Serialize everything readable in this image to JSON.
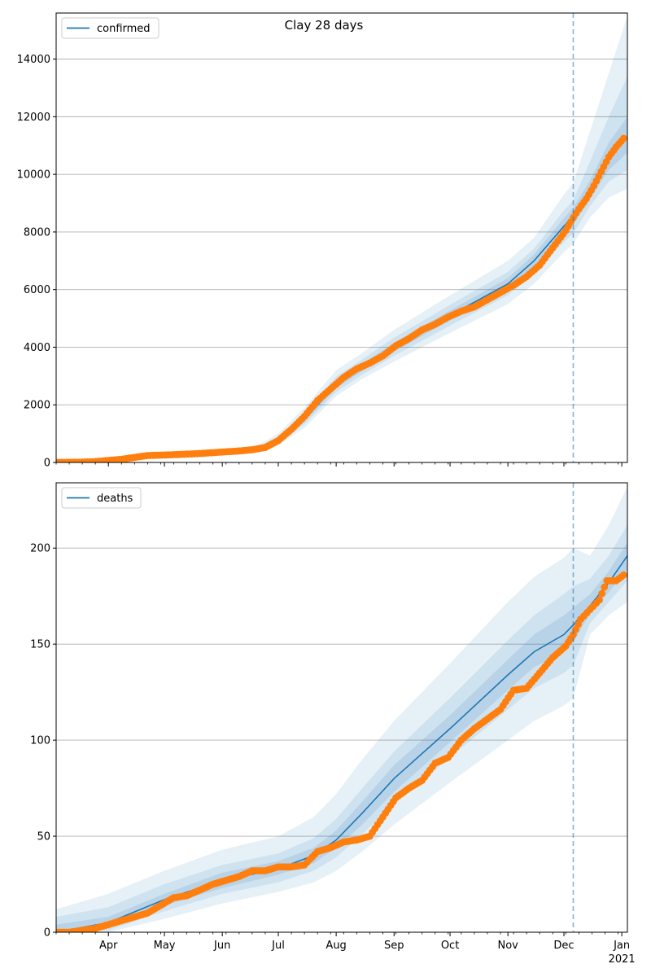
{
  "figure": {
    "title": "Clay 28 days",
    "actual_color": "#ff7f0e",
    "model_color": "#1f77b4",
    "band_color": "#1f77b4",
    "forecast_line_color": "#1f77b4"
  },
  "chart_data": [
    {
      "type": "line",
      "legend": "confirmed",
      "legend_placement": "top-left",
      "grid": "y",
      "x_range": [
        "2020-03-04",
        "2021-01-04"
      ],
      "ylim": [
        0,
        15600
      ],
      "yticks": [
        0,
        2000,
        4000,
        6000,
        8000,
        10000,
        12000,
        14000
      ],
      "ytick_labels": [
        "0",
        "2000",
        "4000",
        "6000",
        "8000",
        "10000",
        "12000",
        "14000"
      ],
      "forecast_start": "2020-12-06",
      "model_line": [
        [
          "2020-03-04",
          0
        ],
        [
          "2020-04-01",
          80
        ],
        [
          "2020-05-01",
          260
        ],
        [
          "2020-06-01",
          360
        ],
        [
          "2020-06-20",
          480
        ],
        [
          "2020-07-01",
          760
        ],
        [
          "2020-07-15",
          1500
        ],
        [
          "2020-08-01",
          2700
        ],
        [
          "2020-08-15",
          3300
        ],
        [
          "2020-09-01",
          4000
        ],
        [
          "2020-10-01",
          5100
        ],
        [
          "2020-11-01",
          6200
        ],
        [
          "2020-11-15",
          7000
        ],
        [
          "2020-12-01",
          8200
        ],
        [
          "2020-12-06",
          8550
        ],
        [
          "2020-12-15",
          9350
        ],
        [
          "2020-12-25",
          10500
        ],
        [
          "2021-01-04",
          11300
        ]
      ],
      "bands": [
        {
          "level": "outer",
          "points": [
            [
              "2020-03-04",
              0,
              80
            ],
            [
              "2020-04-01",
              60,
              110
            ],
            [
              "2020-05-01",
              220,
              320
            ],
            [
              "2020-06-01",
              310,
              430
            ],
            [
              "2020-06-20",
              400,
              600
            ],
            [
              "2020-07-01",
              600,
              1000
            ],
            [
              "2020-07-15",
              1200,
              1900
            ],
            [
              "2020-08-01",
              2300,
              3200
            ],
            [
              "2020-08-15",
              2900,
              3800
            ],
            [
              "2020-09-01",
              3500,
              4600
            ],
            [
              "2020-10-01",
              4500,
              5800
            ],
            [
              "2020-11-01",
              5500,
              7000
            ],
            [
              "2020-11-15",
              6200,
              7800
            ],
            [
              "2020-12-01",
              7300,
              9300
            ],
            [
              "2020-12-06",
              7600,
              9700
            ],
            [
              "2020-12-15",
              8500,
              11500
            ],
            [
              "2020-12-25",
              9200,
              13500
            ],
            [
              "2021-01-04",
              9500,
              15500
            ]
          ]
        },
        {
          "level": "middle",
          "points": [
            [
              "2020-03-04",
              0,
              60
            ],
            [
              "2020-04-01",
              65,
              100
            ],
            [
              "2020-05-01",
              235,
              295
            ],
            [
              "2020-06-01",
              330,
              400
            ],
            [
              "2020-06-20",
              430,
              550
            ],
            [
              "2020-07-01",
              660,
              900
            ],
            [
              "2020-07-15",
              1320,
              1720
            ],
            [
              "2020-08-01",
              2450,
              2980
            ],
            [
              "2020-08-15",
              3050,
              3580
            ],
            [
              "2020-09-01",
              3700,
              4330
            ],
            [
              "2020-10-01",
              4750,
              5470
            ],
            [
              "2020-11-01",
              5800,
              6620
            ],
            [
              "2020-11-15",
              6550,
              7420
            ],
            [
              "2020-12-01",
              7650,
              8750
            ],
            [
              "2020-12-06",
              7950,
              9100
            ],
            [
              "2020-12-15",
              8900,
              10450
            ],
            [
              "2020-12-25",
              9750,
              12000
            ],
            [
              "2021-01-04",
              10150,
              13400
            ]
          ]
        },
        {
          "level": "inner",
          "points": [
            [
              "2020-03-04",
              0,
              40
            ],
            [
              "2020-04-01",
              70,
              90
            ],
            [
              "2020-05-01",
              245,
              275
            ],
            [
              "2020-06-01",
              345,
              375
            ],
            [
              "2020-06-20",
              455,
              510
            ],
            [
              "2020-07-01",
              710,
              820
            ],
            [
              "2020-07-15",
              1410,
              1600
            ],
            [
              "2020-08-01",
              2580,
              2830
            ],
            [
              "2020-08-15",
              3170,
              3430
            ],
            [
              "2020-09-01",
              3850,
              4150
            ],
            [
              "2020-10-01",
              4930,
              5280
            ],
            [
              "2020-11-01",
              6000,
              6400
            ],
            [
              "2020-11-15",
              6780,
              7220
            ],
            [
              "2020-12-01",
              7930,
              8480
            ],
            [
              "2020-12-06",
              8260,
              8840
            ],
            [
              "2020-12-15",
              9150,
              9800
            ],
            [
              "2020-12-25",
              10150,
              11100
            ],
            [
              "2021-01-04",
              10750,
              12000
            ]
          ]
        }
      ],
      "actual": [
        [
          "2020-03-04",
          3
        ],
        [
          "2020-03-11",
          5
        ],
        [
          "2020-03-18",
          12
        ],
        [
          "2020-03-25",
          30
        ],
        [
          "2020-04-01",
          70
        ],
        [
          "2020-04-08",
          110
        ],
        [
          "2020-04-15",
          175
        ],
        [
          "2020-04-22",
          240
        ],
        [
          "2020-04-29",
          255
        ],
        [
          "2020-05-06",
          270
        ],
        [
          "2020-05-13",
          290
        ],
        [
          "2020-05-20",
          310
        ],
        [
          "2020-05-27",
          340
        ],
        [
          "2020-06-03",
          370
        ],
        [
          "2020-06-10",
          400
        ],
        [
          "2020-06-17",
          440
        ],
        [
          "2020-06-24",
          520
        ],
        [
          "2020-07-01",
          760
        ],
        [
          "2020-07-08",
          1150
        ],
        [
          "2020-07-15",
          1600
        ],
        [
          "2020-07-22",
          2150
        ],
        [
          "2020-07-29",
          2550
        ],
        [
          "2020-08-05",
          2950
        ],
        [
          "2020-08-12",
          3250
        ],
        [
          "2020-08-19",
          3450
        ],
        [
          "2020-08-26",
          3700
        ],
        [
          "2020-09-02",
          4050
        ],
        [
          "2020-09-09",
          4300
        ],
        [
          "2020-09-16",
          4600
        ],
        [
          "2020-09-23",
          4800
        ],
        [
          "2020-09-30",
          5050
        ],
        [
          "2020-10-07",
          5250
        ],
        [
          "2020-10-14",
          5400
        ],
        [
          "2020-10-21",
          5650
        ],
        [
          "2020-10-28",
          5900
        ],
        [
          "2020-11-04",
          6150
        ],
        [
          "2020-11-11",
          6450
        ],
        [
          "2020-11-18",
          6850
        ],
        [
          "2020-11-25",
          7450
        ],
        [
          "2020-12-02",
          8050
        ],
        [
          "2020-12-06",
          8500
        ],
        [
          "2020-12-09",
          8800
        ],
        [
          "2020-12-13",
          9150
        ],
        [
          "2020-12-17",
          9600
        ],
        [
          "2020-12-21",
          10100
        ],
        [
          "2020-12-25",
          10600
        ],
        [
          "2020-12-29",
          10950
        ],
        [
          "2021-01-02",
          11250
        ]
      ]
    },
    {
      "type": "line",
      "legend": "deaths",
      "legend_placement": "top-left",
      "grid": "y",
      "x_range": [
        "2020-03-04",
        "2021-01-04"
      ],
      "ylim": [
        0,
        234
      ],
      "yticks": [
        0,
        50,
        100,
        150,
        200
      ],
      "ytick_labels": [
        "0",
        "50",
        "100",
        "150",
        "200"
      ],
      "forecast_start": "2020-12-06",
      "xtick_labels": [
        "Apr",
        "May",
        "Jun",
        "Jul",
        "Aug",
        "Sep",
        "Oct",
        "Nov",
        "Dec",
        "Jan",
        "2021"
      ],
      "model_line": [
        [
          "2020-03-04",
          0
        ],
        [
          "2020-04-01",
          5
        ],
        [
          "2020-05-01",
          17
        ],
        [
          "2020-06-01",
          27
        ],
        [
          "2020-07-01",
          33
        ],
        [
          "2020-07-20",
          40
        ],
        [
          "2020-08-01",
          48
        ],
        [
          "2020-08-15",
          62
        ],
        [
          "2020-09-01",
          80
        ],
        [
          "2020-10-01",
          106
        ],
        [
          "2020-11-01",
          134
        ],
        [
          "2020-11-15",
          146
        ],
        [
          "2020-12-01",
          155
        ],
        [
          "2020-12-06",
          160
        ],
        [
          "2020-12-15",
          170
        ],
        [
          "2020-12-25",
          182
        ],
        [
          "2021-01-04",
          196
        ]
      ],
      "bands": [
        {
          "level": "outer",
          "points": [
            [
              "2020-03-04",
              0,
              12
            ],
            [
              "2020-04-01",
              0,
              20
            ],
            [
              "2020-05-01",
              7,
              32
            ],
            [
              "2020-06-01",
              15,
              43
            ],
            [
              "2020-07-01",
              21,
              50
            ],
            [
              "2020-07-20",
              26,
              60
            ],
            [
              "2020-08-01",
              32,
              72
            ],
            [
              "2020-08-15",
              42,
              90
            ],
            [
              "2020-09-01",
              56,
              110
            ],
            [
              "2020-10-01",
              78,
              140
            ],
            [
              "2020-11-01",
              100,
              172
            ],
            [
              "2020-11-15",
              110,
              185
            ],
            [
              "2020-12-01",
              118,
              195
            ],
            [
              "2020-12-06",
              122,
              200
            ],
            [
              "2020-12-15",
              155,
              196
            ],
            [
              "2020-12-25",
              165,
              212
            ],
            [
              "2021-01-04",
              172,
              232
            ]
          ]
        },
        {
          "level": "middle",
          "points": [
            [
              "2020-03-04",
              0,
              8
            ],
            [
              "2020-04-01",
              1,
              13
            ],
            [
              "2020-05-01",
              11,
              25
            ],
            [
              "2020-06-01",
              20,
              35
            ],
            [
              "2020-07-01",
              26,
              41
            ],
            [
              "2020-07-20",
              32,
              49
            ],
            [
              "2020-08-01",
              39,
              59
            ],
            [
              "2020-08-15",
              51,
              75
            ],
            [
              "2020-09-01",
              67,
              94
            ],
            [
              "2020-10-01",
              91,
              122
            ],
            [
              "2020-11-01",
              116,
              152
            ],
            [
              "2020-11-15",
              127,
              165
            ],
            [
              "2020-12-01",
              135,
              176
            ],
            [
              "2020-12-06",
              139,
              180
            ],
            [
              "2020-12-15",
              161,
              184
            ],
            [
              "2020-12-25",
              172,
              196
            ],
            [
              "2021-01-04",
              183,
              212
            ]
          ]
        },
        {
          "level": "inner",
          "points": [
            [
              "2020-03-04",
              0,
              4
            ],
            [
              "2020-04-01",
              3,
              8
            ],
            [
              "2020-05-01",
              14,
              20
            ],
            [
              "2020-06-01",
              23,
              31
            ],
            [
              "2020-07-01",
              30,
              37
            ],
            [
              "2020-07-20",
              36,
              44
            ],
            [
              "2020-08-01",
              44,
              53
            ],
            [
              "2020-08-15",
              56,
              68
            ],
            [
              "2020-09-01",
              73,
              87
            ],
            [
              "2020-10-01",
              99,
              113
            ],
            [
              "2020-11-01",
              126,
              142
            ],
            [
              "2020-11-15",
              138,
              155
            ],
            [
              "2020-12-01",
              146,
              165
            ],
            [
              "2020-12-06",
              151,
              169
            ],
            [
              "2020-12-15",
              166,
              176
            ],
            [
              "2020-12-25",
              177,
              188
            ],
            [
              "2021-01-04",
              189,
              203
            ]
          ]
        }
      ],
      "actual": [
        [
          "2020-03-04",
          0
        ],
        [
          "2020-03-11",
          0
        ],
        [
          "2020-03-18",
          1
        ],
        [
          "2020-03-25",
          2
        ],
        [
          "2020-04-01",
          4
        ],
        [
          "2020-04-08",
          6
        ],
        [
          "2020-04-15",
          8
        ],
        [
          "2020-04-22",
          10
        ],
        [
          "2020-04-29",
          14
        ],
        [
          "2020-05-06",
          18
        ],
        [
          "2020-05-13",
          19
        ],
        [
          "2020-05-20",
          22
        ],
        [
          "2020-05-27",
          25
        ],
        [
          "2020-06-03",
          27
        ],
        [
          "2020-06-10",
          29
        ],
        [
          "2020-06-17",
          32
        ],
        [
          "2020-06-24",
          32
        ],
        [
          "2020-07-01",
          34
        ],
        [
          "2020-07-08",
          34
        ],
        [
          "2020-07-15",
          35
        ],
        [
          "2020-07-22",
          42
        ],
        [
          "2020-07-29",
          44
        ],
        [
          "2020-08-05",
          47
        ],
        [
          "2020-08-12",
          48
        ],
        [
          "2020-08-19",
          50
        ],
        [
          "2020-08-26",
          60
        ],
        [
          "2020-09-02",
          70
        ],
        [
          "2020-09-09",
          75
        ],
        [
          "2020-09-16",
          79
        ],
        [
          "2020-09-23",
          88
        ],
        [
          "2020-09-30",
          91
        ],
        [
          "2020-10-07",
          100
        ],
        [
          "2020-10-14",
          106
        ],
        [
          "2020-10-21",
          111
        ],
        [
          "2020-10-28",
          116
        ],
        [
          "2020-11-04",
          126
        ],
        [
          "2020-11-11",
          127
        ],
        [
          "2020-11-18",
          135
        ],
        [
          "2020-11-25",
          143
        ],
        [
          "2020-12-02",
          149
        ],
        [
          "2020-12-06",
          155
        ],
        [
          "2020-12-10",
          163
        ],
        [
          "2020-12-15",
          168
        ],
        [
          "2020-12-20",
          173
        ],
        [
          "2020-12-24",
          183
        ],
        [
          "2020-12-29",
          183
        ],
        [
          "2021-01-02",
          186
        ]
      ]
    }
  ]
}
